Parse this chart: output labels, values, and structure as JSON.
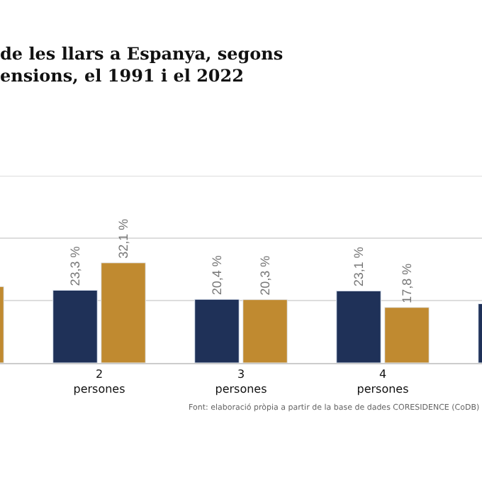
{
  "chart_data": {
    "type": "bar",
    "title": "de les llars a Espanya, segons\nensions, el 1991 i el 2022",
    "categories": [
      null,
      "2\npersones",
      "3\npersones",
      "4\npersones",
      null
    ],
    "series": [
      {
        "color": "#1f3158",
        "values": [
          null,
          23.3,
          20.4,
          23.1,
          19
        ],
        "value_labels": [
          null,
          "23,3 %",
          "20,4 %",
          "23,1 %",
          null
        ]
      },
      {
        "color": "#c08a30",
        "values": [
          24.5,
          32.1,
          20.3,
          17.8,
          null
        ],
        "value_labels": [
          null,
          "32,1 %",
          "20,3 %",
          "17,8 %",
          null
        ]
      }
    ],
    "ylim": [
      0,
      60
    ],
    "ref_lines": [
      {
        "axis": "y",
        "value": 20,
        "color": "#dddddd"
      },
      {
        "axis": "y",
        "value": 40,
        "color": "#dddddd"
      },
      {
        "axis": "y",
        "value": 60,
        "color": "#dddddd"
      }
    ],
    "legend": false,
    "tick_labels": "x",
    "annotations": [
      "Font: elaboració pròpia a partir de la base de dades CORESIDENCE (CoDB)"
    ]
  }
}
